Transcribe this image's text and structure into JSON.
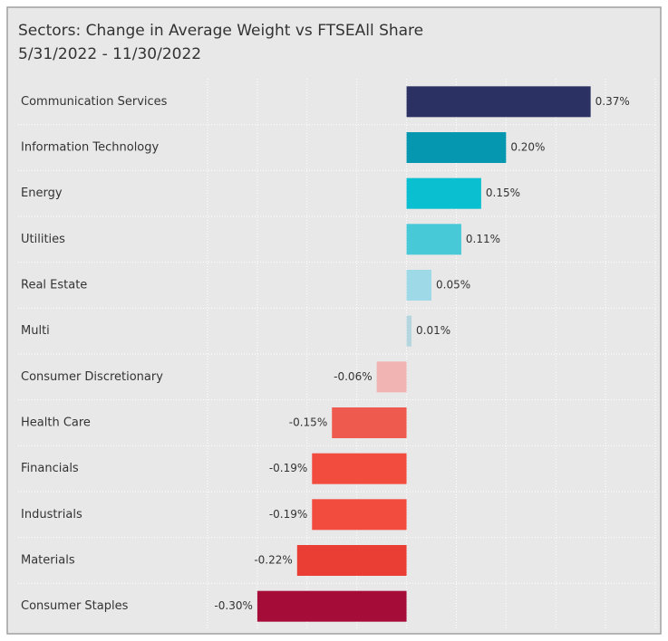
{
  "chart_data": {
    "type": "bar",
    "orientation": "horizontal",
    "title": "Sectors:  Change in Average Weight vs FTSEAll Share",
    "subtitle": "5/31/2022 - 11/30/2022",
    "categories": [
      "Communication Services",
      "Information Technology",
      "Energy",
      "Utilities",
      "Real Estate",
      "Multi",
      "Consumer Discretionary",
      "Health Care",
      "Financials",
      "Industrials",
      "Materials",
      "Consumer Staples"
    ],
    "values": [
      0.37,
      0.2,
      0.15,
      0.11,
      0.05,
      0.01,
      -0.06,
      -0.15,
      -0.19,
      -0.19,
      -0.22,
      -0.3
    ],
    "value_labels": [
      "0.37%",
      "0.20%",
      "0.15%",
      "0.11%",
      "0.05%",
      "0.01%",
      "-0.06%",
      "-0.15%",
      "-0.19%",
      "-0.19%",
      "-0.22%",
      "-0.30%"
    ],
    "colors": [
      "#2b3162",
      "#0597b0",
      "#0abfd0",
      "#48c9d8",
      "#9dd9e6",
      "#b5d6df",
      "#f2b3b3",
      "#ef5a4e",
      "#f24c3f",
      "#f24c3f",
      "#ea3d33",
      "#a50d38"
    ],
    "xlim": [
      -0.4,
      0.5
    ],
    "xticks": [
      -0.4,
      -0.3,
      -0.2,
      -0.1,
      0,
      0.1,
      0.2,
      0.3,
      0.4,
      0.5
    ],
    "grid": true
  }
}
